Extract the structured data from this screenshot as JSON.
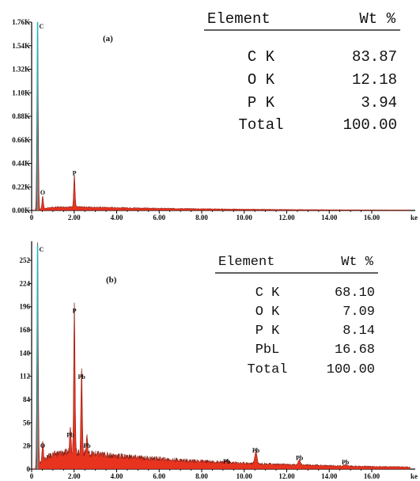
{
  "chart_data": [
    {
      "type": "area",
      "panel_label": "(a)",
      "x_ticks": [
        "0",
        "2.00",
        "4.00",
        "6.00",
        "8.00",
        "10.00",
        "12.00",
        "14.00",
        "16.00"
      ],
      "x_unit": "ke",
      "y_ticks": [
        "0.00K",
        "0.22K",
        "0.44K",
        "0.66K",
        "0.88K",
        "1.10K",
        "1.32K",
        "1.54K",
        "1.76K"
      ],
      "ylim": [
        0,
        1760
      ],
      "xlim": [
        0,
        17.8
      ],
      "peaks": [
        {
          "element": "C",
          "x": 0.28,
          "y": 1760
        },
        {
          "element": "O",
          "x": 0.52,
          "y": 120
        },
        {
          "element": "P",
          "x": 2.01,
          "y": 300
        }
      ],
      "table": {
        "headers": [
          "Element",
          "Wt %"
        ],
        "rows": [
          [
            "C K",
            "83.87"
          ],
          [
            "O K",
            "12.18"
          ],
          [
            "P K",
            "3.94"
          ],
          [
            "Total",
            "100.00"
          ]
        ]
      }
    },
    {
      "type": "area",
      "panel_label": "(b)",
      "x_ticks": [
        "0",
        "2.00",
        "4.00",
        "6.00",
        "8.00",
        "10.00",
        "12.00",
        "14.00",
        "16.00"
      ],
      "x_unit": "ke",
      "y_ticks": [
        "0",
        "28",
        "56",
        "84",
        "112",
        "140",
        "168",
        "196",
        "224",
        "252"
      ],
      "ylim": [
        0,
        275
      ],
      "xlim": [
        0,
        17.8
      ],
      "peaks": [
        {
          "element": "C",
          "x": 0.28,
          "y": 270
        },
        {
          "element": "O",
          "x": 0.52,
          "y": 22
        },
        {
          "element": "P",
          "x": 2.01,
          "y": 185
        },
        {
          "element": "Pb",
          "x": 1.82,
          "y": 35
        },
        {
          "element": "Pb",
          "x": 2.35,
          "y": 105
        },
        {
          "element": "Pb",
          "x": 2.6,
          "y": 22
        },
        {
          "element": "Pb",
          "x": 9.18,
          "y": 3
        },
        {
          "element": "Pb",
          "x": 10.55,
          "y": 16
        },
        {
          "element": "Pb",
          "x": 12.6,
          "y": 7
        },
        {
          "element": "Pb",
          "x": 14.76,
          "y": 2
        }
      ],
      "table": {
        "headers": [
          "Element",
          "Wt %"
        ],
        "rows": [
          [
            "C K",
            "68.10"
          ],
          [
            "O K",
            "7.09"
          ],
          [
            "P K",
            "8.14"
          ],
          [
            "PbL",
            "16.68"
          ],
          [
            "Total",
            "100.00"
          ]
        ]
      }
    }
  ]
}
